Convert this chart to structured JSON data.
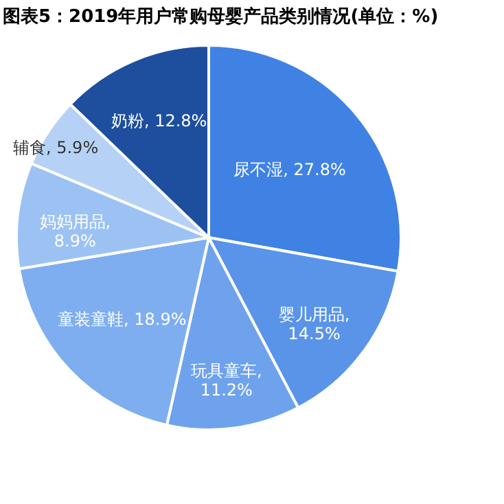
{
  "chart_data": {
    "type": "pie",
    "title": "图表5：2019年用户常购母婴产品类别情况(单位：%)",
    "categories": [
      "尿不湿",
      "婴儿用品",
      "玩具童车",
      "童装童鞋",
      "妈妈用品",
      "辅食",
      "奶粉"
    ],
    "values": [
      27.8,
      14.5,
      11.2,
      18.9,
      8.9,
      5.9,
      12.8
    ],
    "value_labels": [
      ", 27.8%",
      ", 14.5%",
      ", 11.2%",
      ", 18.9%",
      ", 8.9%",
      ", 5.9%",
      ", 12.8%"
    ],
    "colors": [
      "#3f82e3",
      "#5a94e8",
      "#6ea2ec",
      "#7eaeef",
      "#9cc2f4",
      "#b5d2f6",
      "#1d4f9e"
    ],
    "legend": false
  }
}
